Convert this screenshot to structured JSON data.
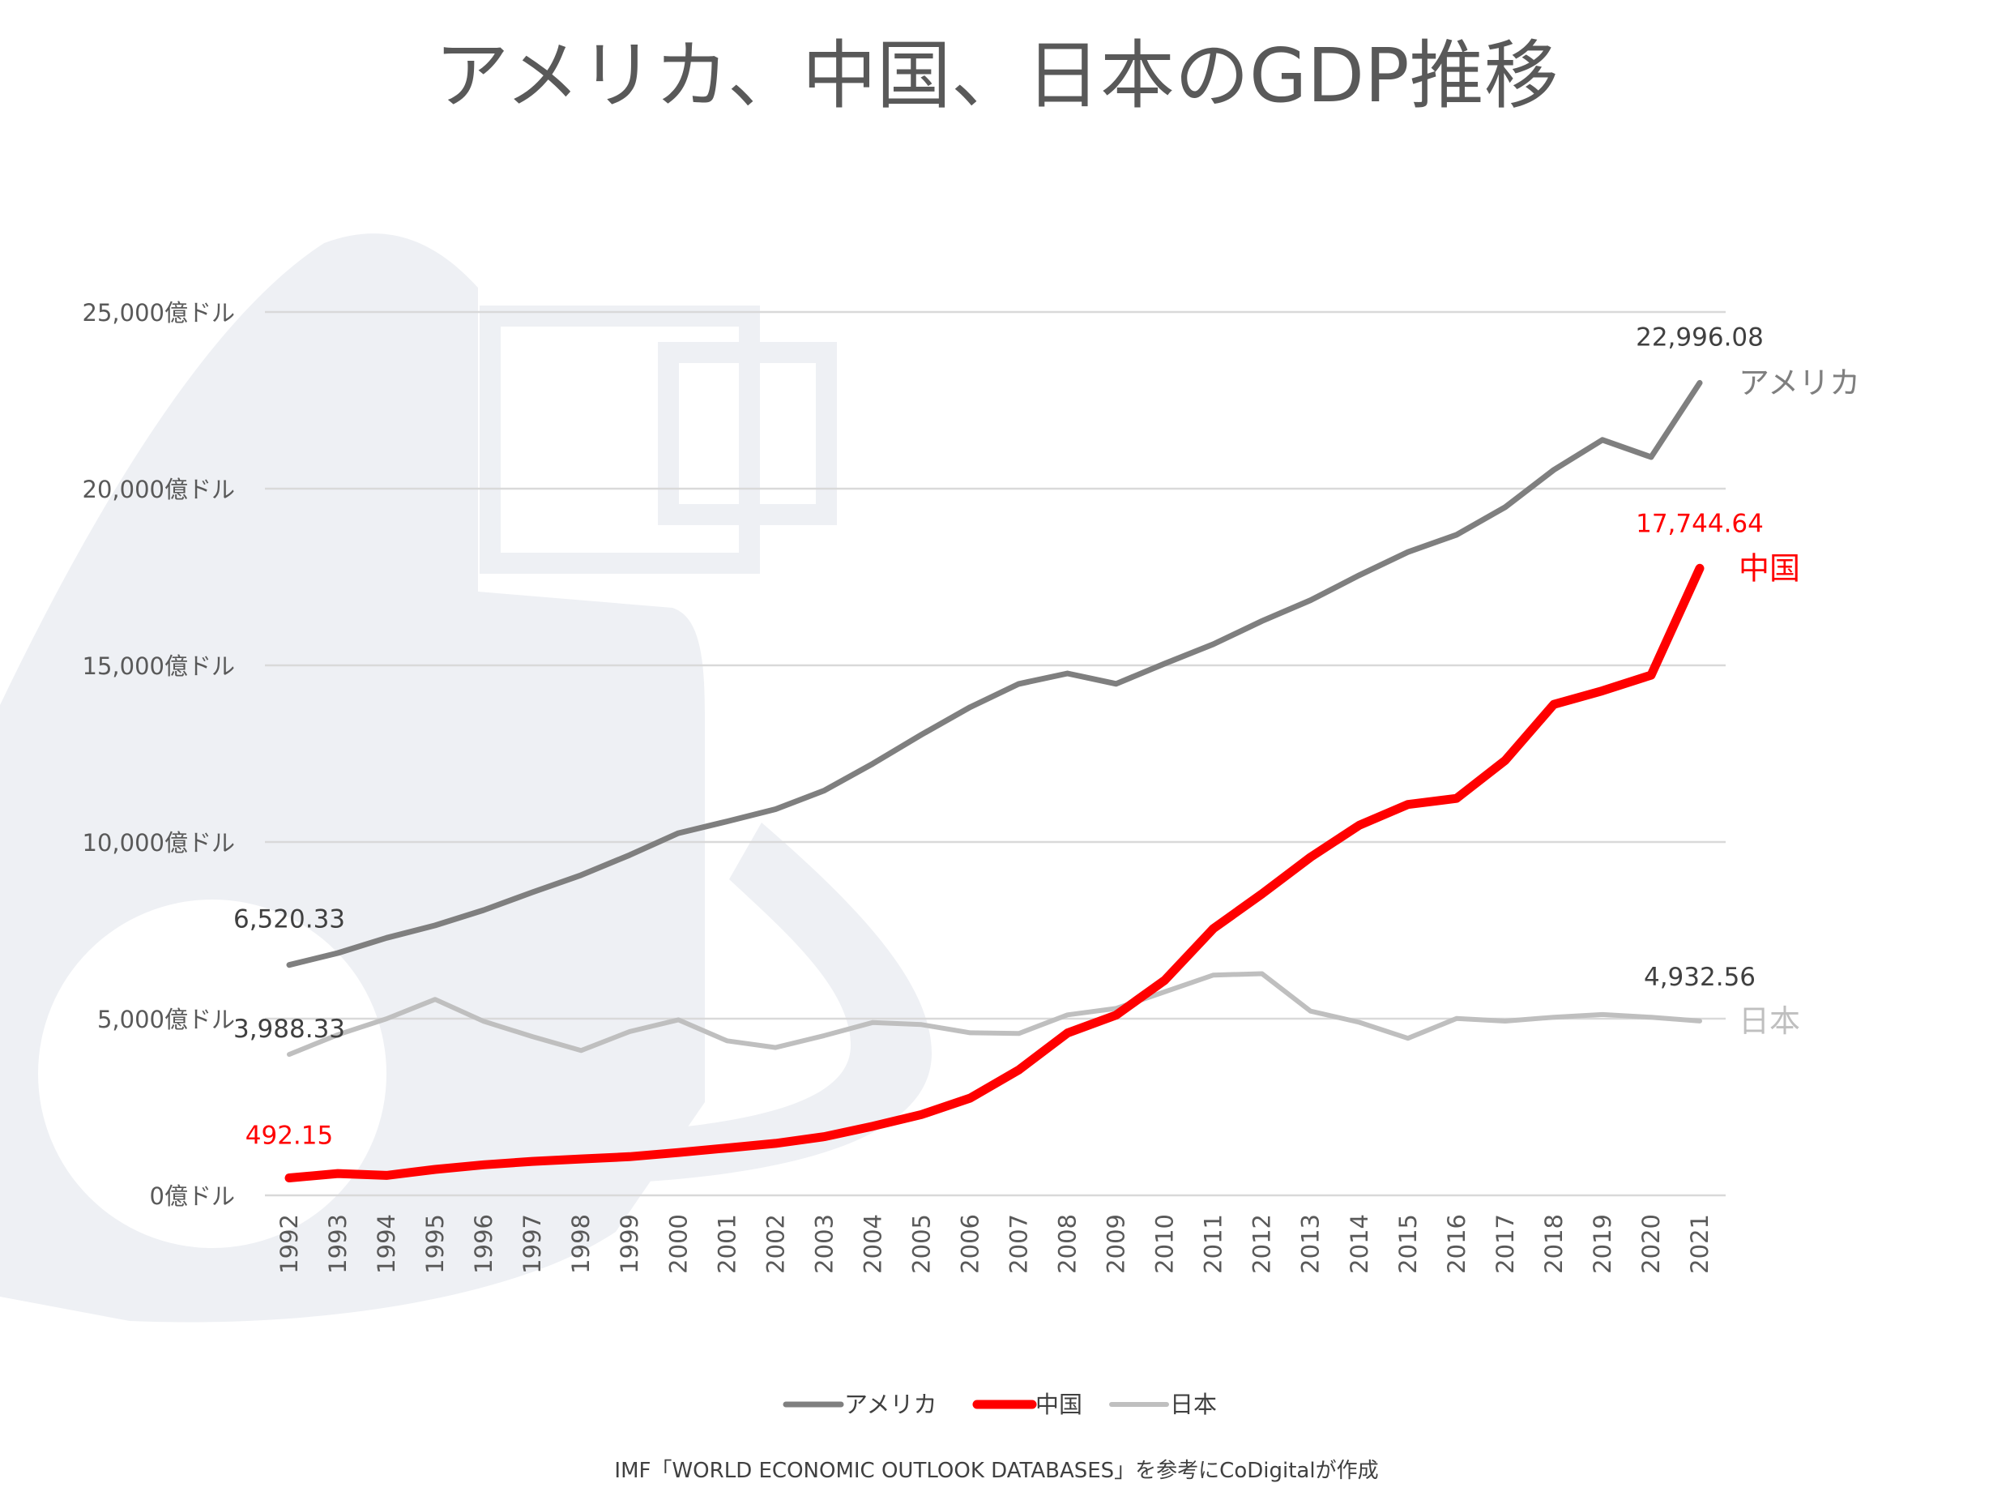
{
  "chart_data": {
    "type": "line",
    "title": "アメリカ、中国、日本のGDP推移",
    "x": [
      "1992",
      "1993",
      "1994",
      "1995",
      "1996",
      "1997",
      "1998",
      "1999",
      "2000",
      "2001",
      "2002",
      "2003",
      "2004",
      "2005",
      "2006",
      "2007",
      "2008",
      "2009",
      "2010",
      "2011",
      "2012",
      "2013",
      "2014",
      "2015",
      "2016",
      "2017",
      "2018",
      "2019",
      "2020",
      "2021"
    ],
    "ylim": [
      0,
      25000
    ],
    "yticks": [
      {
        "value": 0,
        "label": "0億ドル"
      },
      {
        "value": 5000,
        "label": "5,000億ドル"
      },
      {
        "value": 10000,
        "label": "10,000億ドル"
      },
      {
        "value": 15000,
        "label": "15,000億ドル"
      },
      {
        "value": 20000,
        "label": "20,000億ドル"
      },
      {
        "value": 25000,
        "label": "25,000億ドル"
      }
    ],
    "grid": true,
    "legend_position": "bottom",
    "series": [
      {
        "name": "アメリカ",
        "color": "#7f7f7f",
        "values": [
          6520.33,
          6858.6,
          7287.2,
          7639.8,
          8073.1,
          8577.6,
          9062.8,
          9631.2,
          10251.0,
          10581.9,
          10929.1,
          11456.5,
          12217.2,
          13039.2,
          13815.6,
          14474.2,
          14769.9,
          14478.1,
          15049.0,
          15599.7,
          16254.0,
          16843.2,
          17550.7,
          18206.0,
          18695.1,
          19477.3,
          20533.1,
          21380.9,
          20893.7,
          22996.08
        ],
        "start_label": "6,520.33",
        "end_label": "22,996.08"
      },
      {
        "name": "中国",
        "color": "#ff0000",
        "values": [
          492.15,
          617.0,
          564.3,
          734.5,
          863.7,
          961.6,
          1029.0,
          1094.0,
          1211.3,
          1339.4,
          1470.6,
          1660.3,
          1955.3,
          2285.9,
          2752.1,
          3550.3,
          4594.3,
          5101.7,
          6087.2,
          7551.5,
          8532.2,
          9570.4,
          10475.6,
          11061.6,
          11233.3,
          12310.4,
          13894.8,
          14280.0,
          14722.7,
          17744.64
        ],
        "start_label": "492.15",
        "end_label": "17,744.64"
      },
      {
        "name": "日本",
        "color": "#bfbfbf",
        "values": [
          3988.33,
          4544.9,
          4998.8,
          5545.6,
          4923.4,
          4492.4,
          4098.4,
          4635.9,
          4968.4,
          4374.7,
          4182.8,
          4519.6,
          4893.1,
          4831.5,
          4601.7,
          4579.8,
          5106.7,
          5289.5,
          5759.1,
          6233.1,
          6272.4,
          5212.3,
          4896.9,
          4444.9,
          5003.7,
          4930.8,
          5040.9,
          5117.9,
          5040.1,
          4932.56
        ],
        "start_label": "3,988.33",
        "end_label": "4,932.56"
      }
    ],
    "legend": [
      {
        "name": "アメリカ",
        "color": "#7f7f7f"
      },
      {
        "name": "中国",
        "color": "#ff0000"
      },
      {
        "name": "日本",
        "color": "#bfbfbf"
      }
    ],
    "source_note": "IMF「WORLD ECONOMIC OUTLOOK DATABASES」を参考にCoDigitalが作成"
  }
}
